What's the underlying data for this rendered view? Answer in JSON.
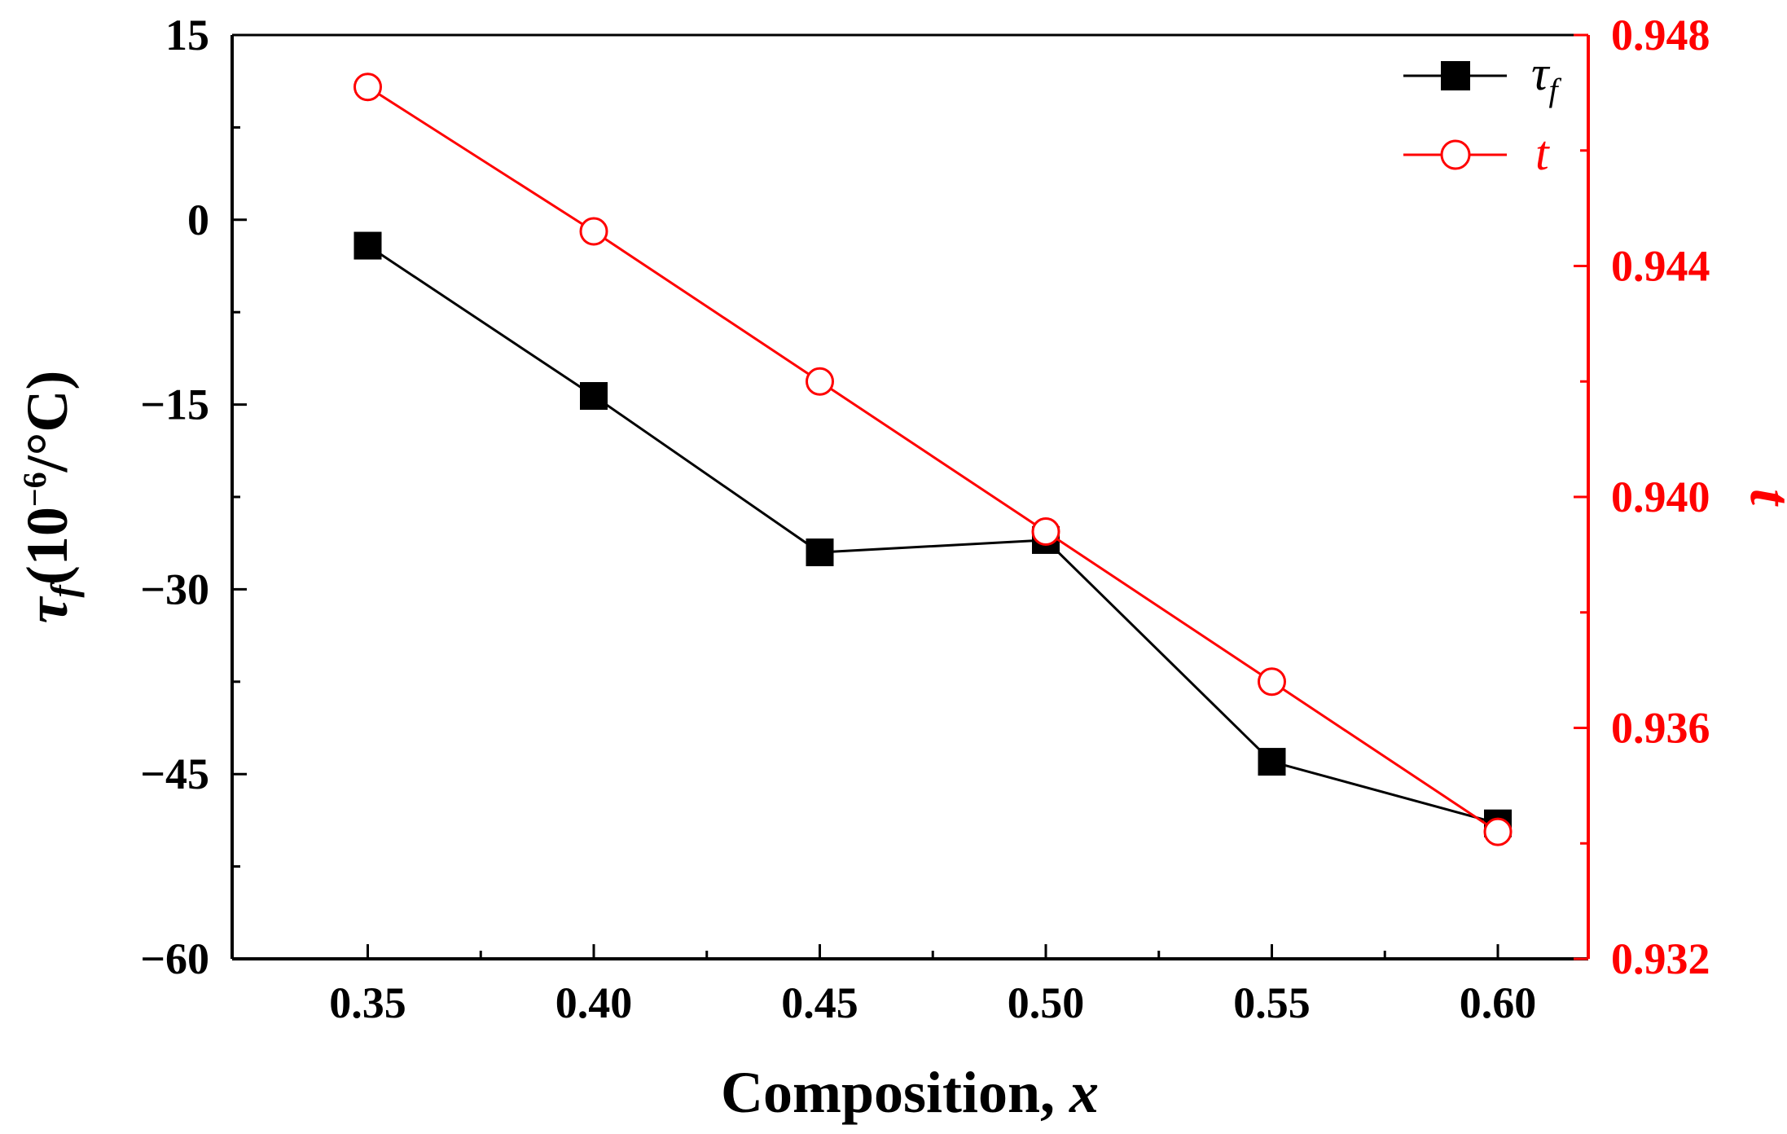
{
  "chart_data": {
    "type": "line",
    "x": [
      0.35,
      0.4,
      0.45,
      0.5,
      0.55,
      0.6
    ],
    "xlabel": {
      "prefix": "Composition, ",
      "var": "x"
    },
    "xlim": [
      0.32,
      0.62
    ],
    "xticks": [
      "0.35",
      "0.40",
      "0.45",
      "0.50",
      "0.55",
      "0.60"
    ],
    "ylabel_left": {
      "symbol": "τ",
      "sub": "f",
      "text": "(10",
      "sup": "−6",
      "unit": "/°C)"
    },
    "ylim_left": [
      -60,
      15
    ],
    "yticks_left": [
      "15",
      "0",
      "−15",
      "−30",
      "−45",
      "−60"
    ],
    "yticks_left_values": [
      15,
      0,
      -15,
      -30,
      -45,
      -60
    ],
    "ylabel_right": "t",
    "ylim_right": [
      0.932,
      0.948
    ],
    "yticks_right": [
      "0.948",
      "0.944",
      "0.940",
      "0.936",
      "0.932"
    ],
    "yticks_right_values": [
      0.948,
      0.944,
      0.94,
      0.936,
      0.932
    ],
    "series": [
      {
        "name": "τ",
        "sub": "f",
        "axis": "left",
        "color": "#000000",
        "marker": "filled-square",
        "values": [
          -2.1,
          -14.3,
          -27.0,
          -26.0,
          -44.0,
          -49.0
        ]
      },
      {
        "name": "t",
        "sub": "",
        "axis": "right",
        "color": "#ff0000",
        "marker": "open-circle",
        "values": [
          0.9471,
          0.9446,
          0.942,
          0.9394,
          0.9368,
          0.9342
        ]
      }
    ],
    "legend_position": "top-right",
    "grid": false
  }
}
